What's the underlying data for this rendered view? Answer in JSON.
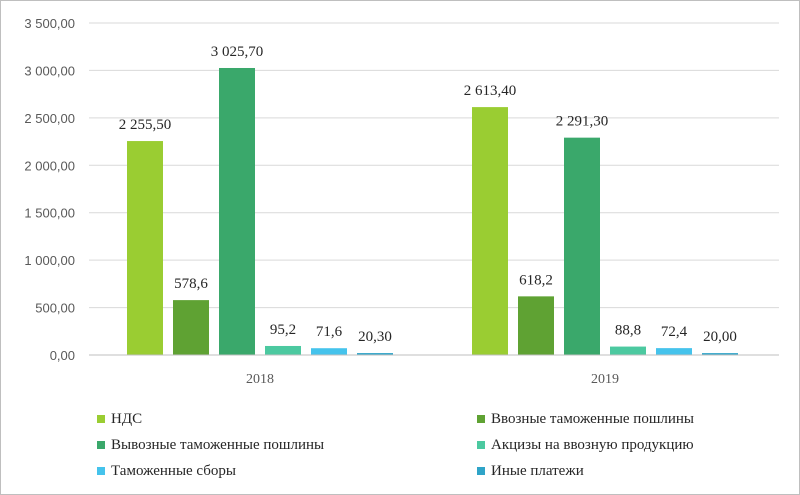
{
  "chart_data": {
    "type": "bar",
    "categories": [
      "2018",
      "2019"
    ],
    "ylim": [
      0,
      3500
    ],
    "yticks": [
      0,
      500,
      1000,
      1500,
      2000,
      2500,
      3000,
      3500
    ],
    "ytick_labels": [
      "0,00",
      "500,00",
      "1 000,00",
      "1 500,00",
      "2 000,00",
      "2 500,00",
      "3 000,00",
      "3 500,00"
    ],
    "gridlines": true,
    "legend_position": "bottom",
    "series": [
      {
        "name": "НДС",
        "color": "#9ACD32",
        "values": [
          2255.5,
          2613.4
        ],
        "labels": [
          "2 255,50",
          "2 613,40"
        ]
      },
      {
        "name": "Ввозные таможенные пошлины",
        "color": "#5FA233",
        "values": [
          578.6,
          618.2
        ],
        "labels": [
          "578,6",
          "618,2"
        ]
      },
      {
        "name": "Вывозные таможенные пошлины",
        "color": "#3AA86B",
        "values": [
          3025.7,
          2291.3
        ],
        "labels": [
          "3 025,70",
          "2 291,30"
        ]
      },
      {
        "name": "Акцизы на ввозную продукцию",
        "color": "#4CC9A0",
        "values": [
          95.2,
          88.8
        ],
        "labels": [
          "95,2",
          "88,8"
        ]
      },
      {
        "name": "Таможенные сборы",
        "color": "#45C3EC",
        "values": [
          71.6,
          72.4
        ],
        "labels": [
          "71,6",
          "72,4"
        ]
      },
      {
        "name": "Иные платежи",
        "color": "#2FA4C8",
        "values": [
          20.3,
          20.0
        ],
        "labels": [
          "20,30",
          "20,00"
        ]
      }
    ]
  }
}
